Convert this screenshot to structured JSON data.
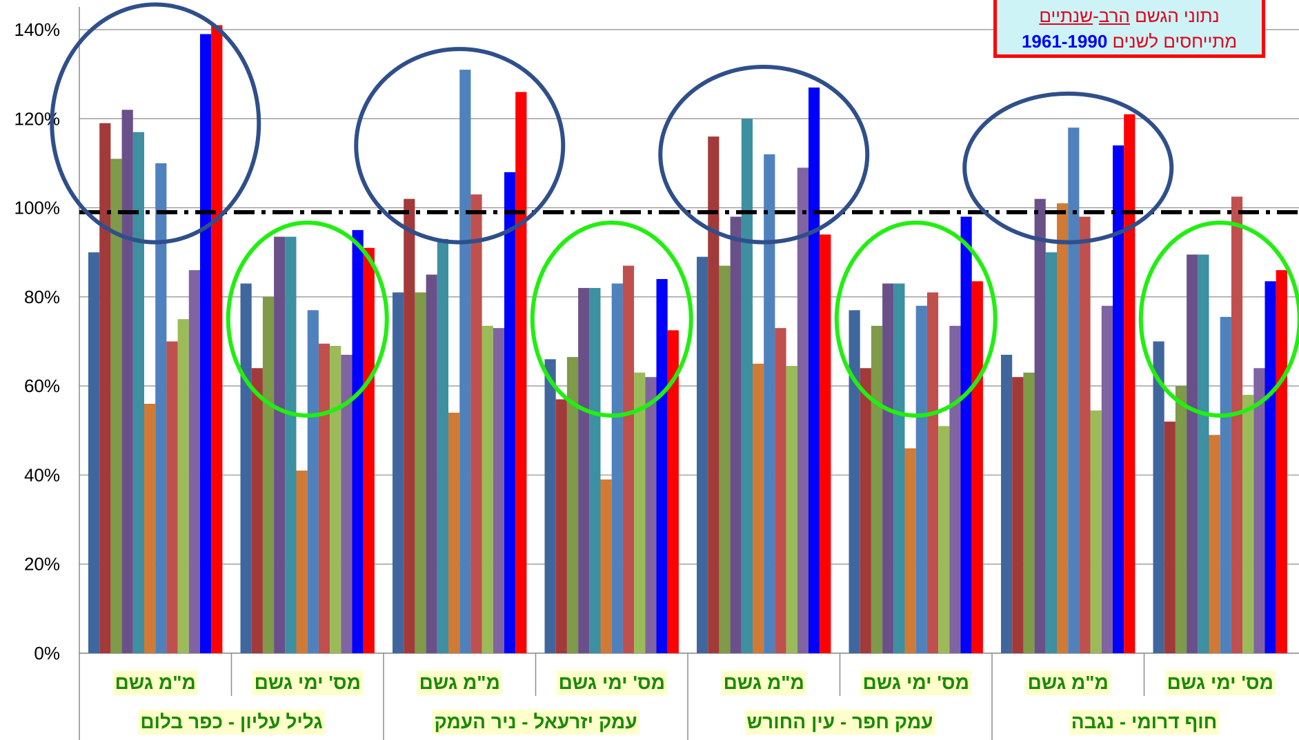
{
  "chart_data": {
    "type": "bar",
    "title": "",
    "xlabel": "",
    "ylabel": "",
    "ylim": [
      0,
      1.45
    ],
    "yticks": [
      "0%",
      "20%",
      "40%",
      "60%",
      "80%",
      "100%",
      "120%",
      "140%"
    ],
    "ytick_values": [
      0,
      0.2,
      0.4,
      0.6,
      0.8,
      1.0,
      1.2,
      1.4
    ],
    "reference_line": 0.99,
    "grid": true,
    "legend_note": {
      "line1_a": "נתוני הגשם ",
      "line1_b": "הרב",
      "line1_c": "-",
      "line1_d": "שנתיים",
      "line2_a": "מתייחסים לשנים ",
      "line2_b": "1961-1990"
    },
    "series_colors": [
      "#3f679e",
      "#a33a3a",
      "#7f9a48",
      "#6a5089",
      "#3d8fa2",
      "#d07a35",
      "#4f81bd",
      "#c0504d",
      "#9bbb59",
      "#8064a2",
      "#0000ff",
      "#ff0000"
    ],
    "groups": [
      {
        "label": "מ\"מ גשם",
        "region": "גליל עליון - כפר בלום",
        "values": [
          0.9,
          1.19,
          1.11,
          1.22,
          1.17,
          0.56,
          1.1,
          0.7,
          0.75,
          0.86,
          1.39,
          1.41
        ]
      },
      {
        "label": "מס' ימי גשם",
        "region": "גליל עליון - כפר בלום",
        "values": [
          0.83,
          0.64,
          0.8,
          0.935,
          0.935,
          0.41,
          0.77,
          0.695,
          0.69,
          0.67,
          0.95,
          0.91
        ]
      },
      {
        "label": "מ\"מ גשם",
        "region": "עמק יזרעאל - ניר העמק",
        "values": [
          0.81,
          1.02,
          0.81,
          0.85,
          0.93,
          0.54,
          1.31,
          1.03,
          0.735,
          0.73,
          1.08,
          1.26
        ]
      },
      {
        "label": "מס' ימי גשם",
        "region": "עמק יזרעאל - ניר העמק",
        "values": [
          0.66,
          0.57,
          0.665,
          0.82,
          0.82,
          0.39,
          0.83,
          0.87,
          0.63,
          0.62,
          0.84,
          0.725
        ]
      },
      {
        "label": "מ\"מ גשם",
        "region": "עמק חפר - עין החורש",
        "values": [
          0.89,
          1.16,
          0.87,
          0.98,
          1.2,
          0.65,
          1.12,
          0.73,
          0.645,
          1.09,
          1.27,
          0.94
        ]
      },
      {
        "label": "מס' ימי גשם",
        "region": "עמק חפר - עין החורש",
        "values": [
          0.77,
          0.64,
          0.735,
          0.83,
          0.83,
          0.46,
          0.78,
          0.81,
          0.51,
          0.735,
          0.98,
          0.835
        ]
      },
      {
        "label": "מ\"מ גשם",
        "region": "חוף דרומי - נגבה",
        "values": [
          0.67,
          0.62,
          0.63,
          1.02,
          0.9,
          1.01,
          1.18,
          0.98,
          0.545,
          0.78,
          1.14,
          1.21
        ]
      },
      {
        "label": "מס' ימי גשם",
        "region": "חוף דרומי - נגבה",
        "values": [
          0.7,
          0.52,
          0.6,
          0.895,
          0.895,
          0.49,
          0.755,
          1.025,
          0.58,
          0.64,
          0.835,
          0.86
        ]
      }
    ],
    "regions": [
      "גליל עליון - כפר בלום",
      "עמק יזרעאל - ניר העמק",
      "עמק חפר - עין החורש",
      "חוף דרומי - נגבה"
    ],
    "highlight_circles": [
      {
        "group": 0,
        "color": "#2f4f8a",
        "kind": "above"
      },
      {
        "group": 1,
        "color": "#22ee11",
        "kind": "below"
      },
      {
        "group": 2,
        "color": "#2f4f8a",
        "kind": "above"
      },
      {
        "group": 3,
        "color": "#22ee11",
        "kind": "below"
      },
      {
        "group": 4,
        "color": "#2f4f8a",
        "kind": "above"
      },
      {
        "group": 5,
        "color": "#22ee11",
        "kind": "below"
      },
      {
        "group": 6,
        "color": "#2f4f8a",
        "kind": "above"
      },
      {
        "group": 7,
        "color": "#22ee11",
        "kind": "below"
      }
    ]
  }
}
